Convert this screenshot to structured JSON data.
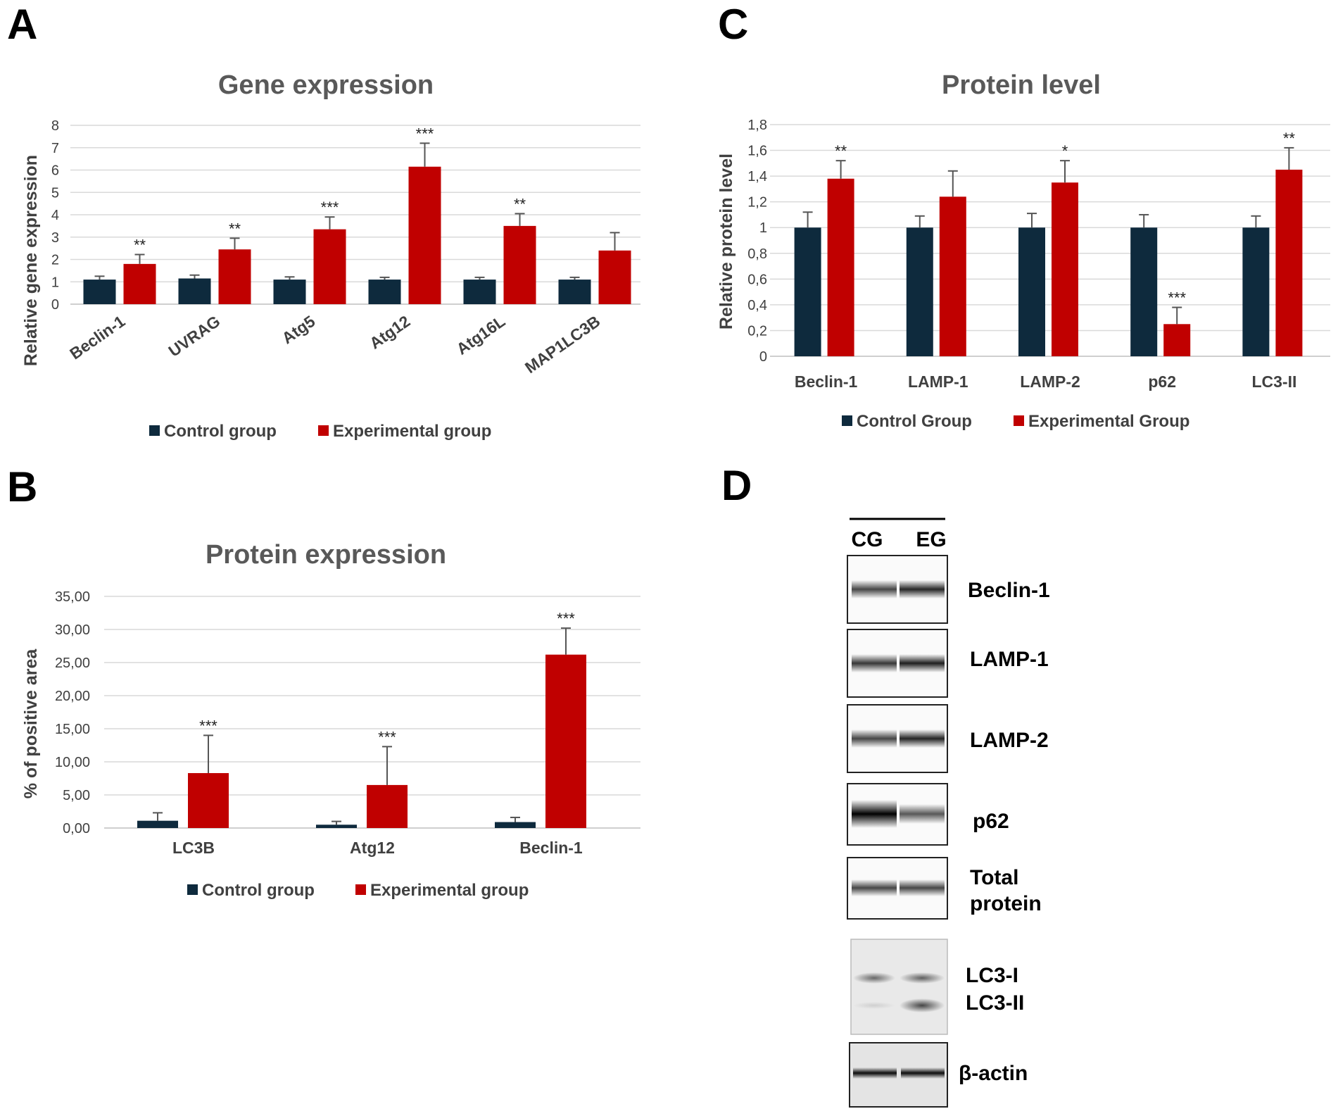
{
  "colors": {
    "control": "#0e2a3d",
    "experimental": "#c00000"
  },
  "panels": {
    "a": "A",
    "b": "B",
    "c": "C",
    "d": "D"
  },
  "chart_data": [
    {
      "id": "A",
      "type": "bar",
      "title": "Gene expression",
      "ylabel": "Relative gene expression",
      "xlabel": "",
      "ylim": [
        0,
        8
      ],
      "yticks": [
        "0",
        "1",
        "2",
        "3",
        "4",
        "5",
        "6",
        "7",
        "8"
      ],
      "ytick_values": [
        0,
        1,
        2,
        3,
        4,
        5,
        6,
        7,
        8
      ],
      "categories": [
        "Beclin-1",
        "UVRAG",
        "Atg5",
        "Atg12",
        "Atg16L",
        "MAP1LC3B"
      ],
      "series": [
        {
          "name": "Control group",
          "values": [
            1.1,
            1.15,
            1.1,
            1.1,
            1.1,
            1.1
          ],
          "errors": [
            0.15,
            0.15,
            0.12,
            0.1,
            0.1,
            0.1
          ]
        },
        {
          "name": "Experimental group",
          "values": [
            1.8,
            2.45,
            3.35,
            6.15,
            3.5,
            2.4
          ],
          "errors": [
            0.42,
            0.5,
            0.55,
            1.05,
            0.55,
            0.8
          ]
        }
      ],
      "significance": [
        "**",
        "**",
        "***",
        "***",
        "**",
        ""
      ],
      "legend": [
        "Control group",
        "Experimental group"
      ]
    },
    {
      "id": "B",
      "type": "bar",
      "title": "Protein expression",
      "ylabel": "% of positive area",
      "xlabel": "",
      "ylim": [
        0,
        35
      ],
      "yticks": [
        "0,00",
        "5,00",
        "10,00",
        "15,00",
        "20,00",
        "25,00",
        "30,00",
        "35,00"
      ],
      "ytick_values": [
        0,
        5,
        10,
        15,
        20,
        25,
        30,
        35
      ],
      "categories": [
        "LC3B",
        "Atg12",
        "Beclin-1"
      ],
      "series": [
        {
          "name": "Control group",
          "values": [
            1.1,
            0.5,
            0.9
          ],
          "errors": [
            1.2,
            0.5,
            0.7
          ]
        },
        {
          "name": "Experimental group",
          "values": [
            8.3,
            6.5,
            26.2
          ],
          "errors": [
            5.7,
            5.8,
            4.0
          ]
        }
      ],
      "significance": [
        "***",
        "***",
        "***"
      ],
      "legend": [
        "Control group",
        "Experimental group"
      ]
    },
    {
      "id": "C",
      "type": "bar",
      "title": "Protein level",
      "ylabel": "Relative protein level",
      "xlabel": "",
      "ylim": [
        0,
        1.8
      ],
      "yticks": [
        "0",
        "0,2",
        "0,4",
        "0,6",
        "0,8",
        "1",
        "1,2",
        "1,4",
        "1,6",
        "1,8"
      ],
      "ytick_values": [
        0,
        0.2,
        0.4,
        0.6,
        0.8,
        1.0,
        1.2,
        1.4,
        1.6,
        1.8
      ],
      "categories": [
        "Beclin-1",
        "LAMP-1",
        "LAMP-2",
        "p62",
        "LC3-II"
      ],
      "series": [
        {
          "name": "Control Group",
          "values": [
            1.0,
            1.0,
            1.0,
            1.0,
            1.0
          ],
          "errors": [
            0.12,
            0.09,
            0.11,
            0.1,
            0.09
          ]
        },
        {
          "name": "Experimental Group",
          "values": [
            1.38,
            1.24,
            1.35,
            0.25,
            1.45
          ],
          "errors": [
            0.14,
            0.2,
            0.17,
            0.13,
            0.17
          ]
        }
      ],
      "significance": [
        "**",
        "",
        "*",
        "***",
        "**"
      ],
      "legend": [
        "Control Group",
        "Experimental Group"
      ]
    }
  ],
  "blot": {
    "lanes": [
      "CG",
      "EG"
    ],
    "rows": [
      {
        "label": "Beclin-1",
        "cg": 0.72,
        "eg": 0.85
      },
      {
        "label": "LAMP-1",
        "cg": 0.78,
        "eg": 0.88
      },
      {
        "label": "LAMP-2",
        "cg": 0.72,
        "eg": 0.86
      },
      {
        "label": "p62",
        "cg": 1.0,
        "eg": 0.65
      },
      {
        "label_line1": "Total",
        "label_line2": "protein",
        "cg": 0.72,
        "eg": 0.72
      },
      {
        "label_line1": "LC3-I",
        "label_line2": "LC3-II"
      },
      {
        "label": "β-actin",
        "cg": 0.95,
        "eg": 0.95
      }
    ]
  }
}
